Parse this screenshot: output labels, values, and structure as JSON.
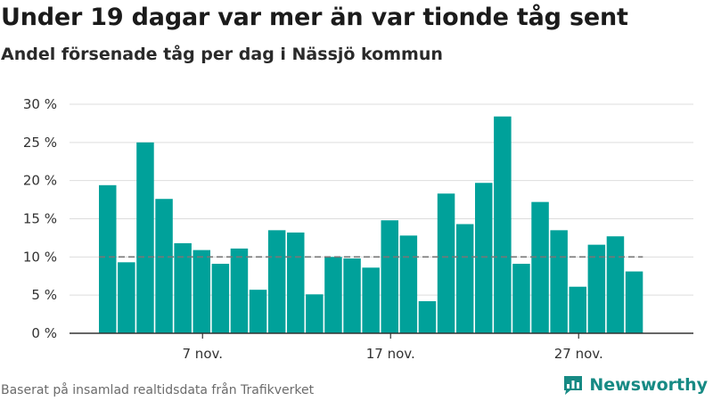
{
  "title": "Under 19 dagar var mer än var tionde tåg sent",
  "subtitle": "Andel försenade tåg per dag i Nässjö kommun",
  "source": "Baserat på insamlad realtidsdata från Trafikverket",
  "brand": {
    "name": "Newsworthy",
    "icon": "newsworthy-logo-icon",
    "color": "#178a84"
  },
  "colors": {
    "bar": "#00a19a",
    "grid": "#dddddd",
    "reference_line": "#777777",
    "axis": "#333333"
  },
  "chart_data": {
    "type": "bar",
    "categories": [
      "2 nov.",
      "3 nov.",
      "4 nov.",
      "5 nov.",
      "6 nov.",
      "7 nov.",
      "8 nov.",
      "9 nov.",
      "10 nov.",
      "11 nov.",
      "12 nov.",
      "13 nov.",
      "14 nov.",
      "15 nov.",
      "16 nov.",
      "17 nov.",
      "18 nov.",
      "19 nov.",
      "20 nov.",
      "21 nov.",
      "22 nov.",
      "23 nov.",
      "24 nov.",
      "25 nov.",
      "26 nov.",
      "27 nov.",
      "28 nov.",
      "29 nov.",
      "30 nov."
    ],
    "values": [
      19.4,
      9.3,
      25.0,
      17.6,
      11.8,
      10.9,
      9.1,
      11.1,
      5.7,
      13.5,
      13.2,
      5.1,
      10.0,
      9.8,
      8.6,
      14.8,
      12.8,
      4.2,
      18.3,
      14.3,
      19.7,
      28.4,
      9.1,
      17.2,
      13.5,
      6.1,
      11.6,
      12.7,
      8.1
    ],
    "x_tick_labels": [
      "7 nov.",
      "17 nov.",
      "27 nov."
    ],
    "x_tick_categories": [
      "7 nov.",
      "17 nov.",
      "27 nov."
    ],
    "y_ticks": [
      0,
      5,
      10,
      15,
      20,
      25,
      30
    ],
    "y_tick_labels": [
      "0 %",
      "5 %",
      "10 %",
      "15 %",
      "20 %",
      "25 %",
      "30 %"
    ],
    "ylim": [
      0,
      30
    ],
    "reference_line": 10,
    "grid": true,
    "unit": "%",
    "xlabel": "",
    "ylabel": ""
  }
}
